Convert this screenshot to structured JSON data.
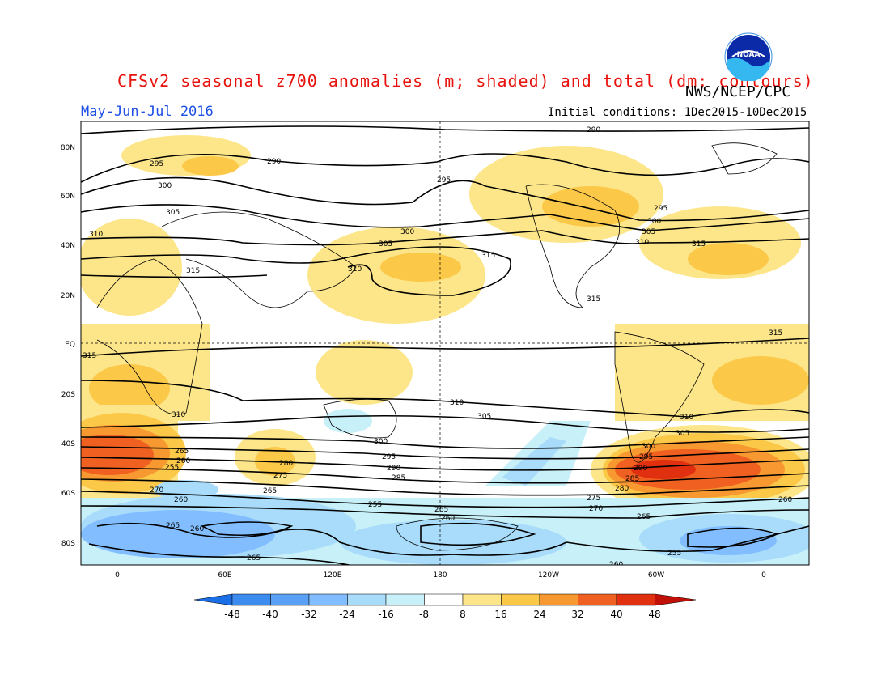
{
  "title": "CFSv2 seasonal z700 anomalies (m; shaded) and total (dm; contours)",
  "agency": "NWS/NCEP/CPC",
  "season": "May-Jun-Jul 2016",
  "initial_conditions": "Initial conditions: 1Dec2015-10Dec2015",
  "logo_text": "NOAA",
  "map": {
    "lat_labels": [
      "80N",
      "60N",
      "40N",
      "20N",
      "EQ",
      "20S",
      "40S",
      "60S",
      "80S"
    ],
    "lon_labels": [
      "0",
      "60E",
      "120E",
      "180",
      "120W",
      "60W",
      "0"
    ],
    "contour_labels": [
      "290",
      "295",
      "300",
      "305",
      "310",
      "315",
      "300",
      "305",
      "310",
      "315",
      "290",
      "295",
      "295",
      "300",
      "305",
      "310",
      "315",
      "315",
      "315",
      "315",
      "310",
      "310",
      "310",
      "305",
      "305",
      "300",
      "295",
      "290",
      "285",
      "280",
      "275",
      "270",
      "265",
      "260",
      "255",
      "265",
      "260",
      "265",
      "265",
      "260",
      "260",
      "265",
      "255",
      "260",
      "295",
      "300",
      "290",
      "285",
      "280",
      "275",
      "270",
      "265",
      "260",
      "255"
    ]
  },
  "colorbar": {
    "labels": [
      "-48",
      "-40",
      "-32",
      "-24",
      "-16",
      "-8",
      "8",
      "16",
      "24",
      "32",
      "40",
      "48"
    ],
    "colors": [
      "#1a6ee6",
      "#3c8cf0",
      "#5aa0f5",
      "#82beff",
      "#a8dcfa",
      "#c8f0f8",
      "#ffffff",
      "#fde68a",
      "#fbc848",
      "#f89830",
      "#f06020",
      "#e03010",
      "#c01008",
      "#a00000"
    ]
  }
}
